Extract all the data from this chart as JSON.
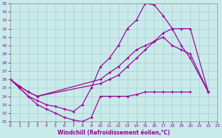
{
  "xlabel": "Windchill (Refroidissement éolien,°C)",
  "background_color": "#c8eaea",
  "grid_color": "#b0c8c8",
  "line_color": "#990099",
  "xlim": [
    0,
    23
  ],
  "ylim": [
    21,
    35
  ],
  "xticks": [
    0,
    1,
    2,
    3,
    4,
    5,
    6,
    7,
    8,
    9,
    10,
    11,
    12,
    13,
    14,
    15,
    16,
    17,
    18,
    19,
    20,
    21,
    22,
    23
  ],
  "yticks": [
    21,
    22,
    23,
    24,
    25,
    26,
    27,
    28,
    29,
    30,
    31,
    32,
    33,
    34,
    35
  ],
  "series": [
    {
      "x": [
        0,
        1,
        2,
        3,
        4,
        5,
        6,
        7,
        8,
        9,
        10,
        11,
        12,
        13,
        14,
        15,
        16,
        17,
        18,
        19,
        20,
        22
      ],
      "y": [
        26,
        25,
        24,
        23.5,
        23,
        22.8,
        22.5,
        22.2,
        23,
        25,
        27.5,
        28.5,
        30,
        32,
        33,
        35,
        34.8,
        33.5,
        32,
        30,
        28.5,
        24.5
      ]
    },
    {
      "x": [
        0,
        1,
        2,
        3,
        10,
        11,
        12,
        13,
        14,
        15,
        16,
        17,
        18,
        19,
        20,
        22
      ],
      "y": [
        26,
        25.2,
        24.5,
        24,
        25.5,
        26,
        26.5,
        27.5,
        28.5,
        29.5,
        30.5,
        31.5,
        32,
        32,
        32,
        24.5
      ]
    },
    {
      "x": [
        0,
        1,
        2,
        3,
        10,
        11,
        12,
        13,
        14,
        15,
        16,
        17,
        18,
        19,
        20,
        22
      ],
      "y": [
        26,
        25.2,
        24.5,
        24,
        26,
        26.8,
        27.5,
        28.5,
        29.5,
        30,
        30.5,
        31,
        30,
        29.5,
        29,
        24.5
      ]
    },
    {
      "x": [
        0,
        1,
        2,
        3,
        4,
        5,
        6,
        7,
        8,
        9,
        10,
        11,
        12,
        13,
        14,
        15,
        16,
        17,
        18,
        19,
        20
      ],
      "y": [
        26,
        25,
        24,
        23,
        22.5,
        22,
        21.5,
        21.2,
        21,
        21.5,
        24,
        24,
        24,
        24,
        24.2,
        24.5,
        24.5,
        24.5,
        24.5,
        24.5,
        24.5
      ]
    }
  ]
}
